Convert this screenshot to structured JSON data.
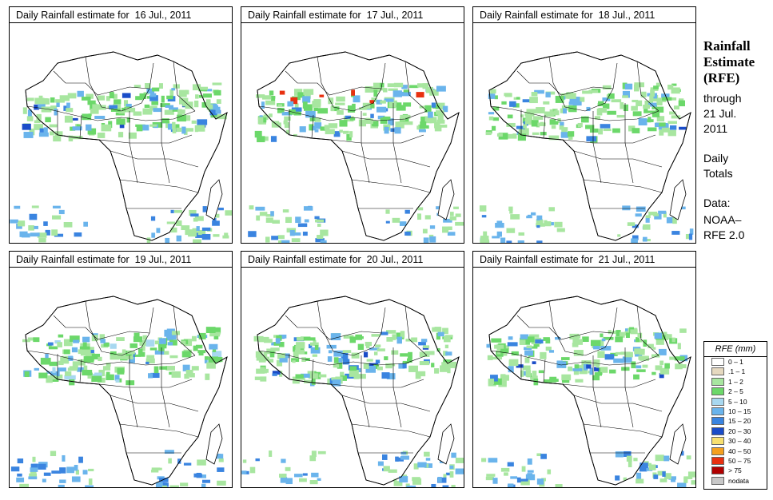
{
  "panels": [
    {
      "title": "Daily Rainfall estimate for  16 Jul., 2011"
    },
    {
      "title": "Daily Rainfall estimate for  17 Jul., 2011"
    },
    {
      "title": "Daily Rainfall estimate for  18 Jul., 2011"
    },
    {
      "title": "Daily Rainfall estimate for  19 Jul., 2011"
    },
    {
      "title": "Daily Rainfall estimate for  20 Jul., 2011"
    },
    {
      "title": "Daily Rainfall estimate for  21 Jul., 2011"
    }
  ],
  "side": {
    "title_line1": "Rainfall",
    "title_line2": "Estimate",
    "title_line3": "(RFE)",
    "through": "through",
    "date_line1": "21 Jul.",
    "date_line2": "2011",
    "totals_line1": "Daily",
    "totals_line2": "Totals",
    "data_label": "Data:",
    "source_line1": "NOAA–",
    "source_line2": "RFE 2.0"
  },
  "legend": {
    "title": "RFE (mm)",
    "items": [
      {
        "label": "0 – 1",
        "color": "#ffffff"
      },
      {
        "label": ".1 – 1",
        "color": "#e6d9c0"
      },
      {
        "label": "1 – 2",
        "color": "#a8e6a0"
      },
      {
        "label": "2 – 5",
        "color": "#6cd86a"
      },
      {
        "label": "5 – 10",
        "color": "#a8d8f0"
      },
      {
        "label": "10 – 15",
        "color": "#6ab4ec"
      },
      {
        "label": "15 – 20",
        "color": "#3a84e0"
      },
      {
        "label": "20 – 30",
        "color": "#1a4cc8"
      },
      {
        "label": "30 – 40",
        "color": "#f8e070"
      },
      {
        "label": "40 – 50",
        "color": "#f4a020"
      },
      {
        "label": "50 – 75",
        "color": "#e83010"
      },
      {
        "label": "> 75",
        "color": "#b00000"
      },
      {
        "label": "nodata",
        "color": "#c8c8c8"
      }
    ]
  }
}
